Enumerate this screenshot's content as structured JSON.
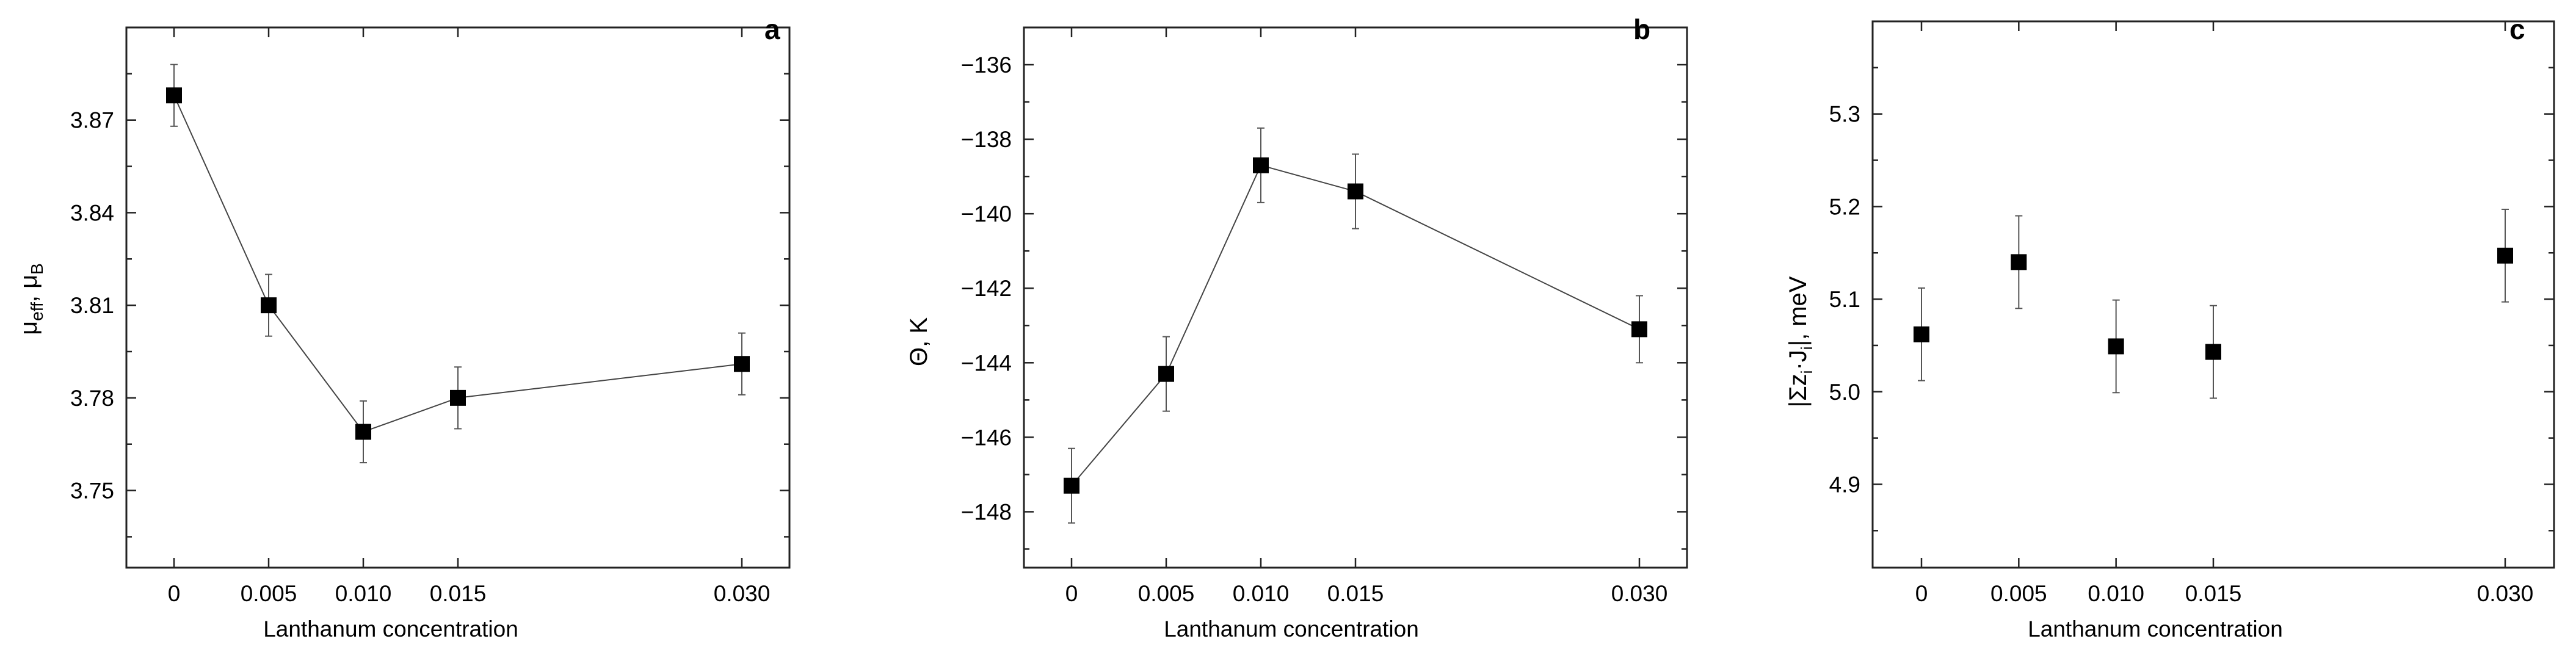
{
  "chart_data": [
    {
      "type": "line",
      "panel_label": "a",
      "title": "",
      "xlabel": "Lanthanum concentration",
      "ylabel": "μeff, μB",
      "ylabel_main": "μ",
      "ylabel_sub1": "eff",
      "ylabel_mid": ", μ",
      "ylabel_sub2": "B",
      "x": [
        0,
        0.005,
        0.01,
        0.015,
        0.03
      ],
      "x_tick_labels": [
        "0",
        "0.005",
        "0.010",
        "0.015",
        "0.030"
      ],
      "y": [
        3.878,
        3.81,
        3.769,
        3.78,
        3.791
      ],
      "y_err": [
        0.01,
        0.01,
        0.01,
        0.01,
        0.01
      ],
      "y_ticks": [
        3.75,
        3.78,
        3.81,
        3.84,
        3.87
      ],
      "y_tick_labels": [
        "3.75",
        "3.78",
        "3.81",
        "3.84",
        "3.87"
      ],
      "ylim": [
        3.725,
        3.9
      ],
      "connected": true,
      "marker": "filled-square",
      "grid": false,
      "legend": false
    },
    {
      "type": "line",
      "panel_label": "b",
      "title": "",
      "xlabel": "Lanthanum concentration",
      "ylabel": "Θ, K",
      "x": [
        0,
        0.005,
        0.01,
        0.015,
        0.03
      ],
      "x_tick_labels": [
        "0",
        "0.005",
        "0.010",
        "0.015",
        "0.030"
      ],
      "y": [
        -147.3,
        -144.3,
        -138.7,
        -139.4,
        -143.1
      ],
      "y_err": [
        1.0,
        1.0,
        1.0,
        1.0,
        0.9
      ],
      "y_ticks": [
        -148,
        -146,
        -144,
        -142,
        -140,
        -138,
        -136
      ],
      "y_tick_labels": [
        "−148",
        "−146",
        "−144",
        "−142",
        "−140",
        "−138",
        "−136"
      ],
      "ylim": [
        -149.5,
        -135.0
      ],
      "connected": true,
      "marker": "filled-square",
      "grid": false,
      "legend": false
    },
    {
      "type": "scatter",
      "panel_label": "c",
      "title": "",
      "xlabel": "Lanthanum concentration",
      "ylabel": "|Σzi·Ji|, meV",
      "ylabel_pre": "|Σz",
      "ylabel_sub1": "i",
      "ylabel_mid": "·J",
      "ylabel_sub2": "i",
      "ylabel_post": "|, meV",
      "x": [
        0,
        0.005,
        0.01,
        0.015,
        0.03
      ],
      "x_tick_labels": [
        "0",
        "0.005",
        "0.010",
        "0.015",
        "0.030"
      ],
      "y": [
        5.062,
        5.14,
        5.049,
        5.043,
        5.147
      ],
      "y_err": [
        0.05,
        0.05,
        0.05,
        0.05,
        0.05
      ],
      "y_ticks": [
        4.9,
        5.0,
        5.1,
        5.2,
        5.3
      ],
      "y_tick_labels": [
        "4.9",
        "5.0",
        "5.1",
        "5.2",
        "5.3"
      ],
      "ylim": [
        4.81,
        5.4
      ],
      "connected": false,
      "marker": "filled-square",
      "grid": false,
      "legend": false
    }
  ]
}
